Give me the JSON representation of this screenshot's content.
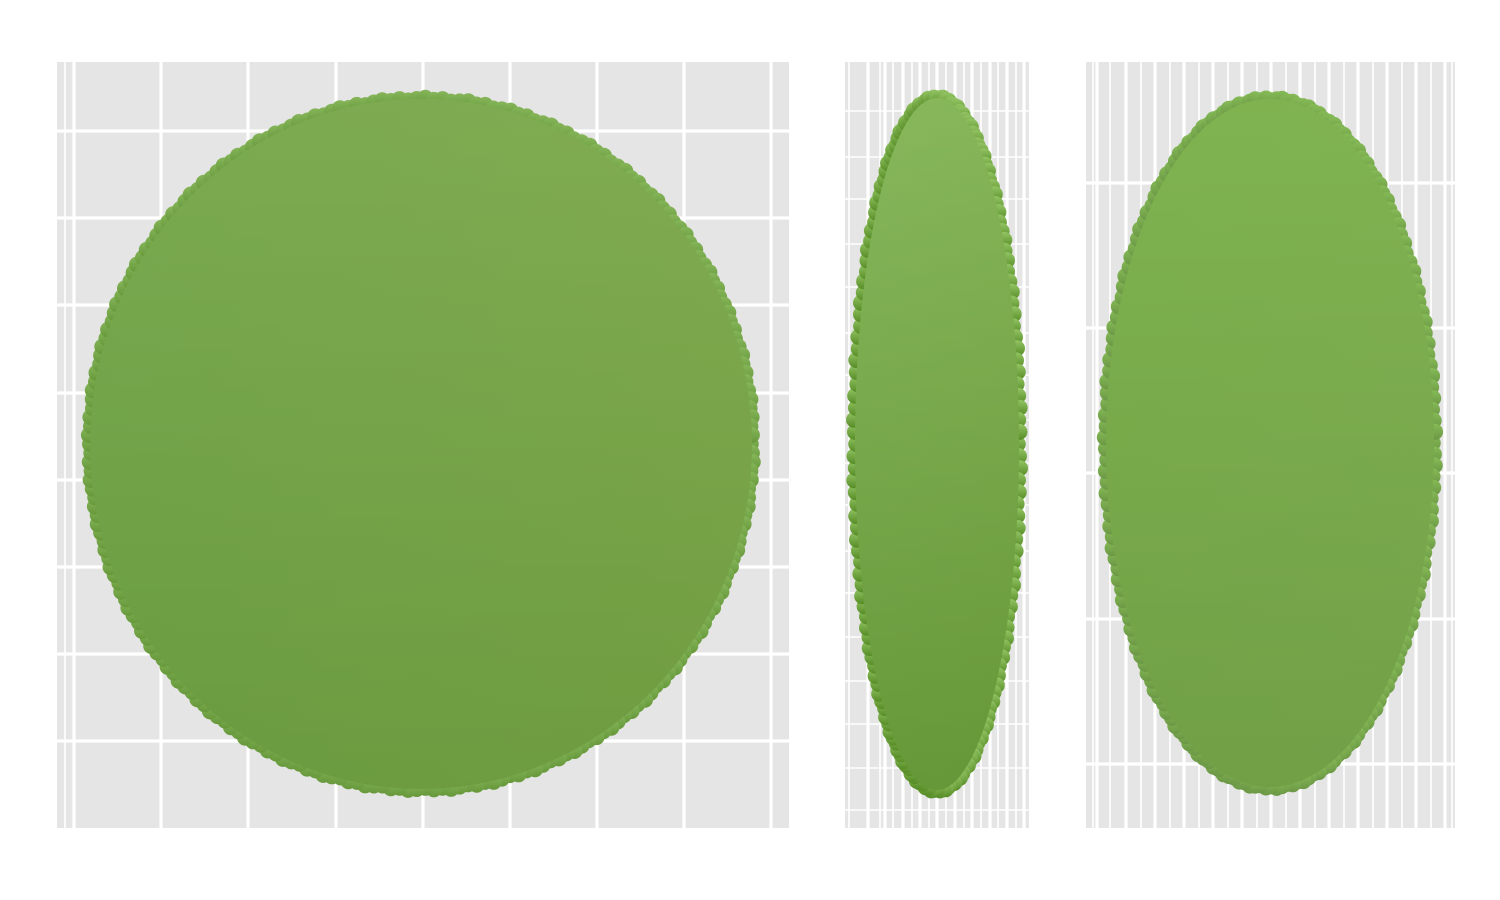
{
  "chart_data": [
    {
      "type": "scatter",
      "shape": "filled disk",
      "title": "",
      "xlabel": "",
      "ylabel": "",
      "xlim": [
        -1,
        1
      ],
      "ylim": [
        -1,
        1
      ],
      "grid": true,
      "legend": "none",
      "colors": {
        "top": "#86b55a",
        "bottom": "#66983a",
        "left": "#6c9e48",
        "right": "#7da046"
      }
    },
    {
      "type": "scatter",
      "shape": "filled narrow ellipse",
      "title": "",
      "xlabel": "",
      "ylabel": "",
      "xlim": [
        -1,
        1
      ],
      "ylim": [
        -1,
        1
      ],
      "grid": true,
      "legend": "none",
      "colors": {
        "top": "#93c464",
        "bottom": "#568c26",
        "left": "#7aa853",
        "right": "#77a34c"
      }
    },
    {
      "type": "scatter",
      "shape": "filled ellipse",
      "title": "",
      "xlabel": "",
      "ylabel": "",
      "xlim": [
        -1,
        1
      ],
      "ylim": [
        -1,
        1
      ],
      "grid": true,
      "legend": "none",
      "colors": {
        "top": "#86bb57",
        "bottom": "#6b9745",
        "left": "#76aa46",
        "right": "#7aa94b"
      }
    }
  ]
}
